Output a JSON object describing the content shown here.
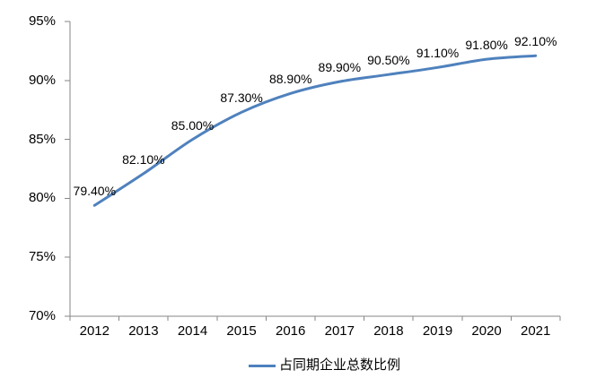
{
  "chart_data": {
    "type": "line",
    "title": "",
    "xlabel": "",
    "ylabel": "",
    "categories": [
      "2012",
      "2013",
      "2014",
      "2015",
      "2016",
      "2017",
      "2018",
      "2019",
      "2020",
      "2021"
    ],
    "series": [
      {
        "name": "占同期企业总数比例",
        "values": [
          79.4,
          82.1,
          85.0,
          87.3,
          88.9,
          89.9,
          90.5,
          91.1,
          91.8,
          92.1
        ]
      }
    ],
    "data_labels": [
      "79.40%",
      "82.10%",
      "85.00%",
      "87.30%",
      "88.90%",
      "89.90%",
      "90.50%",
      "91.10%",
      "91.80%",
      "92.10%"
    ],
    "y_tick_labels": [
      "70%",
      "75%",
      "80%",
      "85%",
      "90%",
      "95%"
    ],
    "ylim": [
      70,
      95
    ],
    "y_tick_step": 5,
    "grid": false,
    "smooth": true,
    "legend_position": "bottom",
    "line_color": "#4F81BD",
    "axis_color": "#868686",
    "text_color": "#000000",
    "background_color": "#FFFFFF"
  },
  "legend": {
    "label": "占同期企业总数比例"
  }
}
